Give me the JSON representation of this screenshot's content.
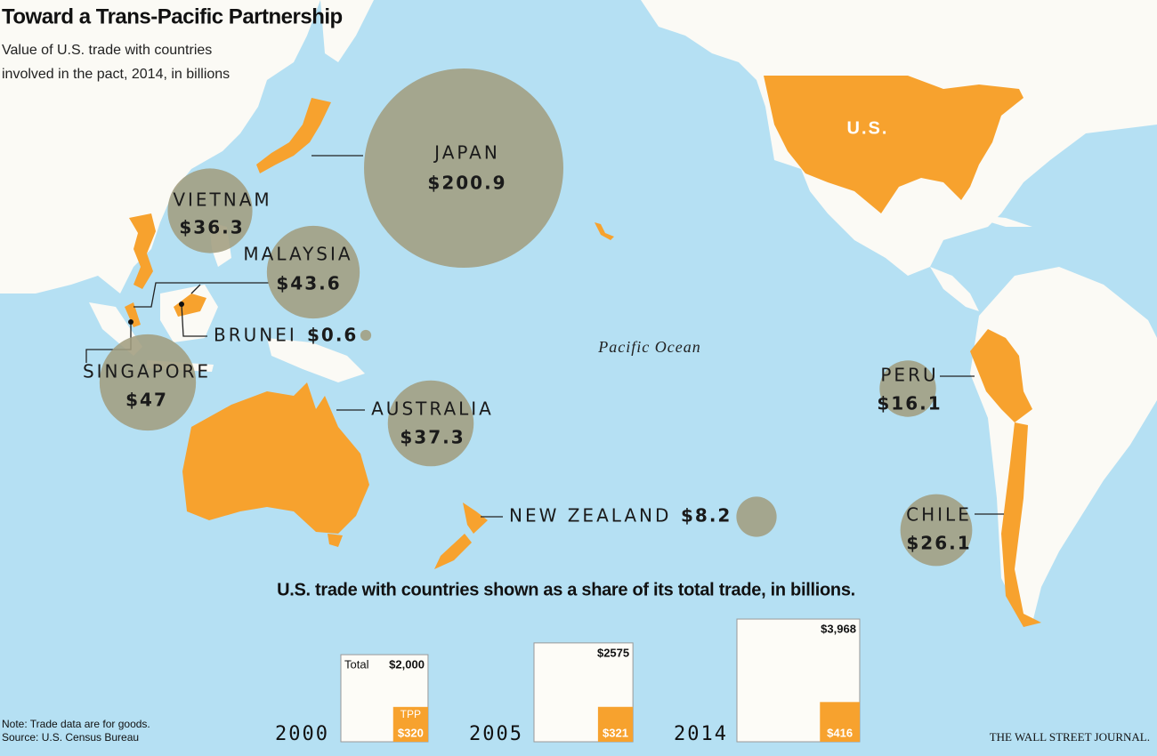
{
  "title": "Toward a Trans-Pacific Partnership",
  "subtitle_lines": [
    "Value of U.S. trade with countries",
    "involved in the pact, 2014, in billions"
  ],
  "us_label": "U.S.",
  "ocean_label": "Pacific Ocean",
  "countries": [
    {
      "name": "JAPAN",
      "value": 200.9,
      "value_label": "$200.9"
    },
    {
      "name": "VIETNAM",
      "value": 36.3,
      "value_label": "$36.3"
    },
    {
      "name": "MALAYSIA",
      "value": 43.6,
      "value_label": "$43.6"
    },
    {
      "name": "BRUNEI",
      "value": 0.6,
      "value_label": "$0.6"
    },
    {
      "name": "SINGAPORE",
      "value": 47,
      "value_label": "$47"
    },
    {
      "name": "AUSTRALIA",
      "value": 37.3,
      "value_label": "$37.3"
    },
    {
      "name": "NEW ZEALAND",
      "value": 8.2,
      "value_label": "$8.2"
    },
    {
      "name": "PERU",
      "value": 16.1,
      "value_label": "$16.1"
    },
    {
      "name": "CHILE",
      "value": 26.1,
      "value_label": "$26.1"
    }
  ],
  "inset": {
    "title": "U.S. trade with countries shown as a share of its total trade, in billions.",
    "total_label": "Total",
    "tpp_label": "TPP",
    "years": [
      {
        "year": "2000",
        "total": 2000,
        "total_label": "$2,000",
        "tpp": 320,
        "tpp_label": "$320"
      },
      {
        "year": "2005",
        "total": 2575,
        "total_label": "$2575",
        "tpp": 321,
        "tpp_label": "$321"
      },
      {
        "year": "2014",
        "total": 3968,
        "total_label": "$3,968",
        "tpp": 416,
        "tpp_label": "$416"
      }
    ]
  },
  "note": "Note: Trade data are for goods.",
  "source": "Source: U.S. Census Bureau",
  "credit": "THE WALL STREET JOURNAL."
}
